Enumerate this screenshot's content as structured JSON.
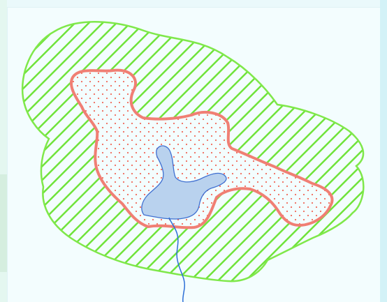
{
  "map": {
    "colors": {
      "buffer_stroke": "#7fe84a",
      "buffer_hatch": "#6fe33a",
      "inner_stroke": "#f07f74",
      "inner_dots": "#f06a5a",
      "core_fill": "#b9d2ee",
      "core_stroke": "#3f6fd1",
      "river": "#2d6fd6",
      "background": "#f3fdfe"
    },
    "layers": [
      {
        "id": "outer-buffer",
        "style": "diagonal-hatch",
        "color_key": "buffer_stroke"
      },
      {
        "id": "inner-zone",
        "style": "dot-fill",
        "color_key": "inner_stroke"
      },
      {
        "id": "core-area",
        "style": "solid-fill",
        "color_key": "core_fill"
      },
      {
        "id": "river-line",
        "style": "line",
        "color_key": "river"
      }
    ]
  }
}
